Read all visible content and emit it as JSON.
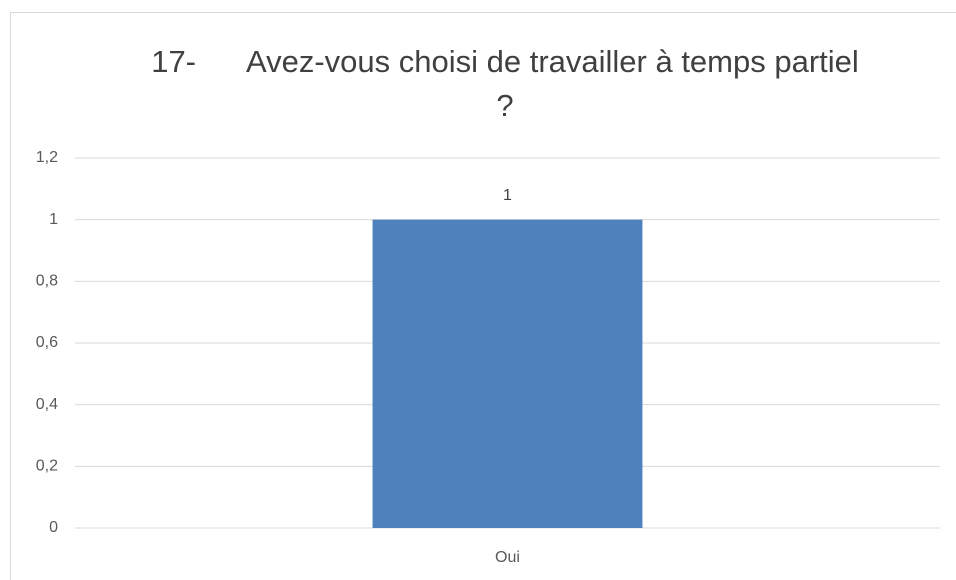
{
  "chart_data": {
    "type": "bar",
    "title": "17-      Avez-vous choisi de travailler à temps partiel ?",
    "categories": [
      "Oui"
    ],
    "values": [
      1
    ],
    "color": "#4f81bd",
    "ylim": [
      0,
      1.2
    ],
    "yticks": [
      0,
      {
        "value": 0.2,
        "label": "0,2"
      },
      {
        "value": 0.4,
        "label": "0,4"
      },
      {
        "value": 0.6,
        "label": "0,6"
      },
      {
        "value": 0.8,
        "label": "0,8"
      },
      1,
      {
        "value": 1.2,
        "label": "1,2"
      }
    ],
    "grid": true
  }
}
